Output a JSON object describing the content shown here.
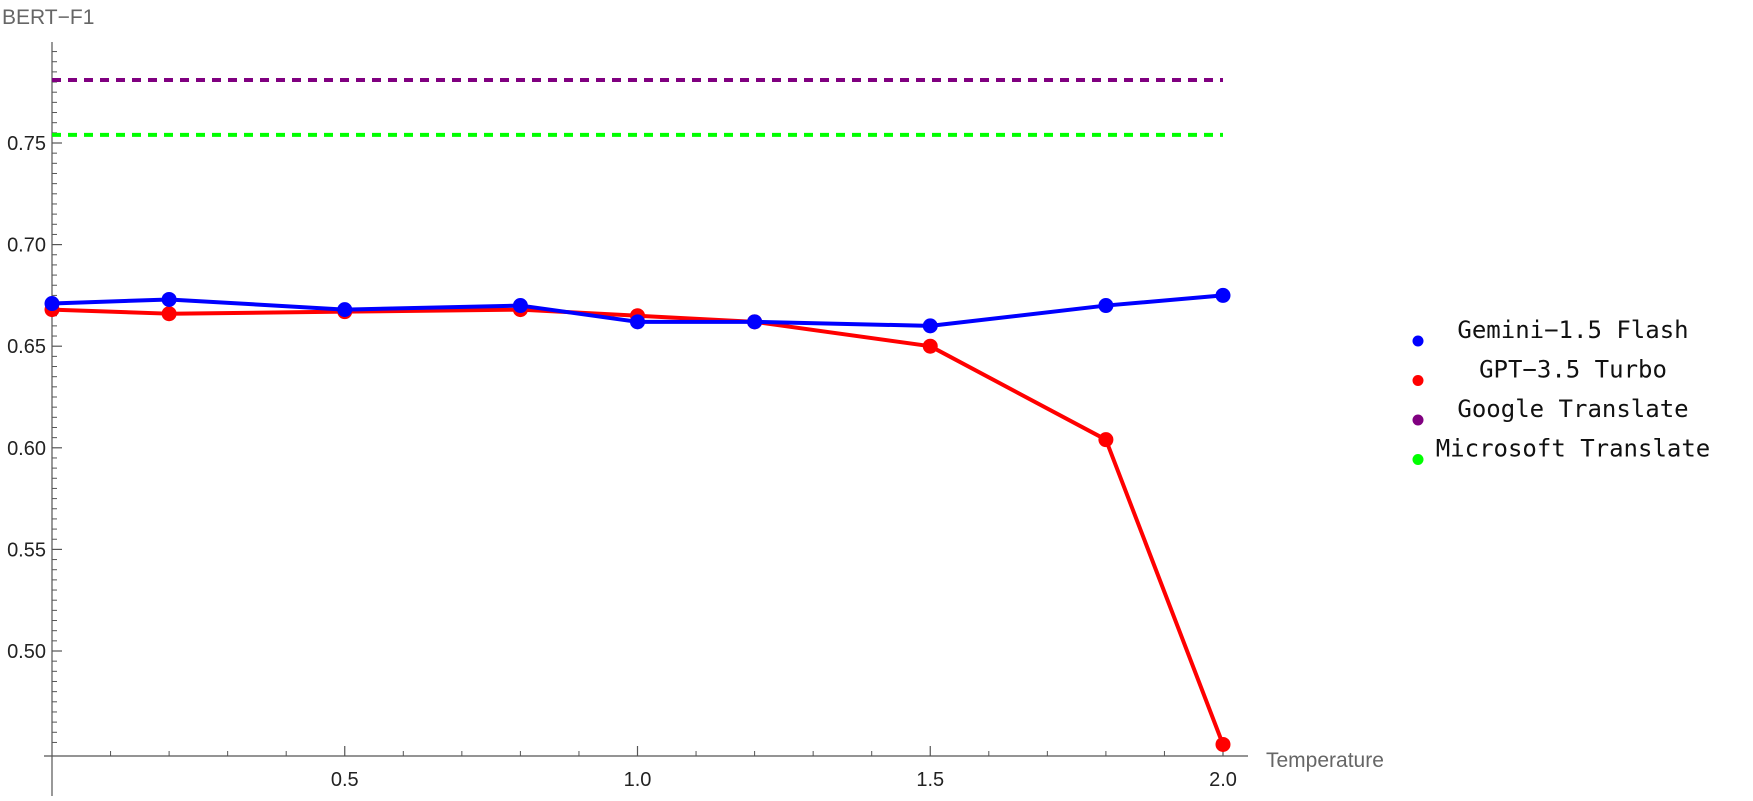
{
  "chart_data": {
    "type": "line",
    "title": "",
    "xlabel": "Temperature",
    "ylabel": "BERT−F1",
    "xlim": [
      0,
      2.0
    ],
    "ylim": [
      0.46,
      0.8
    ],
    "x_ticks": [
      {
        "value": 0.5,
        "label": "0.5"
      },
      {
        "value": 1.0,
        "label": "1.0"
      },
      {
        "value": 1.5,
        "label": "1.5"
      },
      {
        "value": 2.0,
        "label": "2.0"
      }
    ],
    "y_ticks": [
      {
        "value": 0.5,
        "label": "0.50"
      },
      {
        "value": 0.55,
        "label": "0.55"
      },
      {
        "value": 0.6,
        "label": "0.60"
      },
      {
        "value": 0.65,
        "label": "0.65"
      },
      {
        "value": 0.7,
        "label": "0.70"
      },
      {
        "value": 0.75,
        "label": "0.75"
      }
    ],
    "grid": false,
    "legend_position": "right",
    "series": [
      {
        "name": "Gemini−1.5 Flash",
        "color": "#0000ff",
        "style": "line-markers",
        "x": [
          0,
          0.2,
          0.5,
          0.8,
          1.0,
          1.2,
          1.5,
          1.8,
          2.0
        ],
        "values": [
          0.671,
          0.673,
          0.668,
          0.67,
          0.662,
          0.662,
          0.66,
          0.67,
          0.675
        ]
      },
      {
        "name": "GPT−3.5 Turbo",
        "color": "#ff0000",
        "style": "line-markers",
        "x": [
          0,
          0.2,
          0.5,
          0.8,
          1.0,
          1.2,
          1.5,
          1.8,
          2.0
        ],
        "values": [
          0.668,
          0.666,
          0.667,
          0.668,
          0.665,
          0.662,
          0.65,
          0.604,
          0.454
        ]
      },
      {
        "name": "Google Translate",
        "color": "#800080",
        "style": "dashed-constant",
        "x": [
          0,
          2.0
        ],
        "values": [
          0.781,
          0.781
        ]
      },
      {
        "name": "Microsoft Translate",
        "color": "#00ff00",
        "style": "dashed-constant",
        "x": [
          0,
          2.0
        ],
        "values": [
          0.754,
          0.754
        ]
      }
    ]
  }
}
